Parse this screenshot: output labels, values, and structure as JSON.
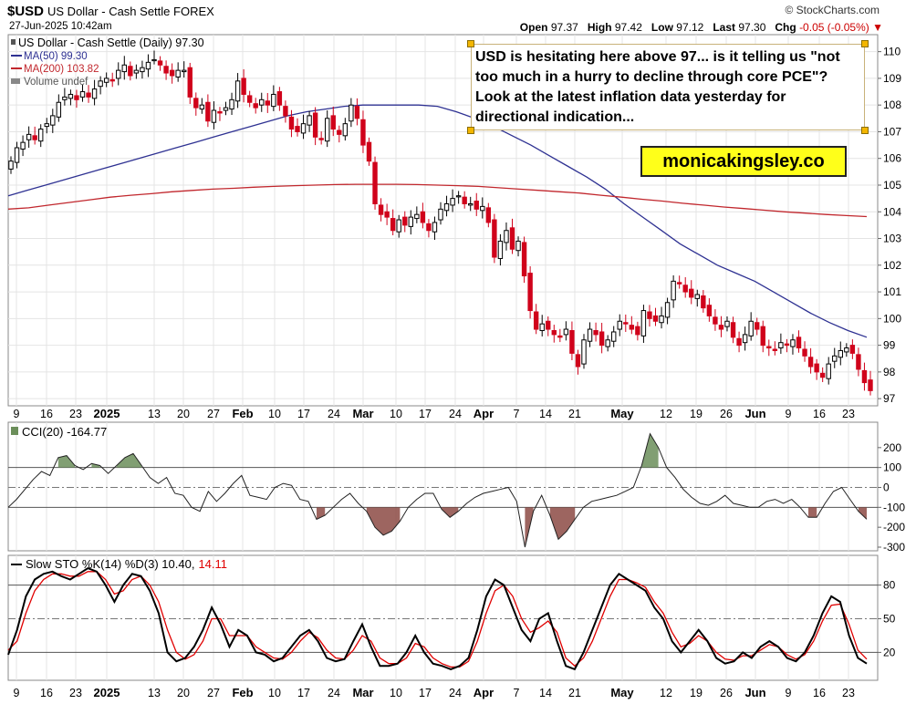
{
  "header": {
    "symbol": "$USD",
    "name": "US Dollar - Cash Settle",
    "exchange": "FOREX",
    "datetime": "27-Jun-2025 10:42am",
    "brand": "© StockCharts.com",
    "open_label": "Open",
    "open": "97.37",
    "high_label": "High",
    "high": "97.42",
    "low_label": "Low",
    "low": "97.12",
    "last_label": "Last",
    "last": "97.30",
    "chg_label": "Chg",
    "chg": "-0.05 (-0.05%)"
  },
  "legend": {
    "main": "US Dollar - Cash Settle (Daily) 97.30",
    "ma50": "MA(50) 99.30",
    "ma200": "MA(200) 103.82",
    "volume": "Volume undef"
  },
  "annotation": {
    "text": "USD is hesitating here above 97... is it telling us \"not too much in a hurry to decline through core PCE\"? Look at the latest inflation data yesterday for directional indication..."
  },
  "watermark_box": "monicakingsley.co",
  "colors": {
    "up": "#000000",
    "down": "#d0021b",
    "ma50": "#2e3192",
    "ma200": "#c1272d",
    "cci_pos": "#6b8e5a",
    "cci_neg": "#8c4a44",
    "k_line": "#000000",
    "d_line": "#e00000"
  },
  "x_tick_labels": [
    "9",
    "16",
    "23",
    "2025",
    "13",
    "20",
    "27",
    "Feb",
    "10",
    "17",
    "24",
    "Mar",
    "10",
    "17",
    "24",
    "Apr",
    "7",
    "14",
    "21",
    "May",
    "12",
    "19",
    "26",
    "Jun",
    "9",
    "16",
    "23"
  ],
  "chart_data": [
    {
      "type": "candlestick",
      "title": "$USD US Dollar - Cash Settle FOREX (Daily)",
      "ylim": [
        96.8,
        110.5
      ],
      "y_ticks": [
        97,
        98,
        99,
        100,
        101,
        102,
        103,
        104,
        105,
        106,
        107,
        108,
        109,
        110
      ],
      "close": [
        105.9,
        106.4,
        106.6,
        106.9,
        106.7,
        107.1,
        107.3,
        107.6,
        108.1,
        108.3,
        108.4,
        108.2,
        108.5,
        108.3,
        108.6,
        108.9,
        109.0,
        108.9,
        109.3,
        109.5,
        109.1,
        109.3,
        109.4,
        109.6,
        109.7,
        109.5,
        109.2,
        109.1,
        109.3,
        109.3,
        108.3,
        107.9,
        108.0,
        107.4,
        107.8,
        107.7,
        107.9,
        108.2,
        108.9,
        108.4,
        108.1,
        107.9,
        108.2,
        108.0,
        108.4,
        108.0,
        107.6,
        107.1,
        107.0,
        107.3,
        107.6,
        106.8,
        106.7,
        107.5,
        107.1,
        106.9,
        107.3,
        108.0,
        107.5,
        106.5,
        105.9,
        104.3,
        103.9,
        103.8,
        103.3,
        103.7,
        103.5,
        103.8,
        103.9,
        103.6,
        103.3,
        103.6,
        104.1,
        104.3,
        104.5,
        104.6,
        104.3,
        104.3,
        104.1,
        104.2,
        103.6,
        102.3,
        102.9,
        103.3,
        102.6,
        102.9,
        101.6,
        100.3,
        99.6,
        99.8,
        99.6,
        99.4,
        99.3,
        99.6,
        98.7,
        98.2,
        99.2,
        99.6,
        99.4,
        99.0,
        99.2,
        99.5,
        99.9,
        99.8,
        99.6,
        99.4,
        100.3,
        100.0,
        99.9,
        100.1,
        100.6,
        101.4,
        101.3,
        101.0,
        100.8,
        100.9,
        100.4,
        100.1,
        99.8,
        99.6,
        99.9,
        99.3,
        99.0,
        99.4,
        99.9,
        99.6,
        99.0,
        98.9,
        98.8,
        99.1,
        99.0,
        99.2,
        98.9,
        98.6,
        98.2,
        98.0,
        97.8,
        98.3,
        98.6,
        98.8,
        98.9,
        98.7,
        98.1,
        97.6,
        97.3
      ],
      "series": [
        {
          "name": "MA(50)",
          "last": 99.3,
          "values": [
            104.6,
            104.8,
            105.0,
            105.2,
            105.4,
            105.6,
            105.8,
            106.0,
            106.2,
            106.4,
            106.6,
            106.8,
            107.0,
            107.2,
            107.4,
            107.6,
            107.75,
            107.85,
            107.95,
            108.0,
            108.0,
            108.0,
            108.0,
            107.95,
            107.75,
            107.5,
            107.2,
            106.85,
            106.5,
            106.1,
            105.7,
            105.3,
            104.85,
            104.3,
            103.8,
            103.3,
            102.8,
            102.4,
            102.0,
            101.7,
            101.4,
            101.0,
            100.6,
            100.2,
            99.85,
            99.55,
            99.3
          ]
        },
        {
          "name": "MA(200)",
          "last": 103.82,
          "values": [
            104.1,
            104.15,
            104.25,
            104.35,
            104.45,
            104.55,
            104.62,
            104.68,
            104.75,
            104.8,
            104.85,
            104.88,
            104.92,
            104.95,
            104.98,
            105.0,
            105.02,
            105.03,
            105.03,
            105.03,
            105.02,
            105.0,
            104.98,
            104.95,
            104.9,
            104.85,
            104.8,
            104.75,
            104.7,
            104.62,
            104.55,
            104.47,
            104.4,
            104.32,
            104.25,
            104.18,
            104.12,
            104.06,
            104.0,
            103.95,
            103.9,
            103.86,
            103.82
          ]
        }
      ]
    },
    {
      "type": "area",
      "title": "CCI(20) -164.77",
      "ylim": [
        -300,
        300
      ],
      "y_ticks": [
        -300,
        -200,
        -100,
        0,
        100,
        200
      ],
      "values": [
        -100,
        -60,
        -10,
        40,
        80,
        60,
        150,
        160,
        110,
        90,
        120,
        110,
        70,
        110,
        150,
        170,
        110,
        50,
        20,
        50,
        -30,
        -40,
        -100,
        -120,
        -20,
        -70,
        -30,
        20,
        60,
        -40,
        -50,
        -60,
        0,
        20,
        10,
        -60,
        -70,
        -160,
        -140,
        -100,
        -60,
        -30,
        -80,
        -120,
        -200,
        -240,
        -220,
        -170,
        -100,
        -60,
        -30,
        -30,
        -110,
        -150,
        -120,
        -80,
        -50,
        -30,
        -20,
        -10,
        0,
        -70,
        -300,
        -120,
        -40,
        -140,
        -260,
        -220,
        -160,
        -100,
        -70,
        -60,
        -50,
        -40,
        -20,
        0,
        110,
        270,
        200,
        100,
        50,
        -10,
        -50,
        -80,
        -90,
        -70,
        -40,
        -80,
        -90,
        -100,
        -100,
        -70,
        -60,
        -80,
        -60,
        -100,
        -150,
        -150,
        -80,
        -20,
        0,
        -60,
        -120,
        -160
      ],
      "title_value": "-164.77"
    },
    {
      "type": "line",
      "title": "Slow STO %K(14) %D(3) 10.40, 14.11",
      "ylim": [
        0,
        100
      ],
      "y_ticks": [
        20,
        50,
        80
      ],
      "series": [
        {
          "name": "%K(14)",
          "last": 10.4,
          "values": [
            18,
            40,
            70,
            85,
            90,
            92,
            88,
            85,
            90,
            95,
            92,
            80,
            65,
            80,
            90,
            88,
            75,
            55,
            20,
            12,
            15,
            25,
            40,
            60,
            45,
            25,
            40,
            35,
            20,
            18,
            12,
            15,
            25,
            35,
            40,
            30,
            15,
            12,
            14,
            30,
            45,
            25,
            8,
            8,
            10,
            20,
            35,
            20,
            10,
            8,
            5,
            8,
            15,
            40,
            70,
            85,
            80,
            60,
            40,
            30,
            50,
            55,
            30,
            8,
            5,
            20,
            40,
            60,
            80,
            90,
            85,
            80,
            75,
            60,
            50,
            30,
            20,
            30,
            40,
            30,
            15,
            10,
            12,
            20,
            15,
            25,
            30,
            25,
            15,
            12,
            20,
            35,
            55,
            70,
            65,
            35,
            15,
            10
          ]
        },
        {
          "name": "%D(3)",
          "last": 14.11,
          "values": [
            22,
            30,
            55,
            75,
            85,
            90,
            90,
            88,
            88,
            92,
            92,
            85,
            72,
            75,
            85,
            88,
            80,
            65,
            40,
            20,
            14,
            18,
            30,
            50,
            50,
            35,
            35,
            35,
            25,
            20,
            15,
            14,
            20,
            30,
            38,
            33,
            22,
            15,
            14,
            22,
            35,
            30,
            15,
            10,
            10,
            15,
            28,
            25,
            15,
            10,
            7,
            7,
            12,
            30,
            55,
            75,
            80,
            70,
            50,
            38,
            42,
            48,
            38,
            15,
            8,
            15,
            30,
            50,
            70,
            85,
            85,
            82,
            78,
            65,
            55,
            38,
            25,
            28,
            35,
            30,
            20,
            14,
            13,
            17,
            17,
            22,
            27,
            25,
            18,
            14,
            18,
            30,
            48,
            62,
            63,
            45,
            22,
            14
          ]
        }
      ]
    }
  ]
}
